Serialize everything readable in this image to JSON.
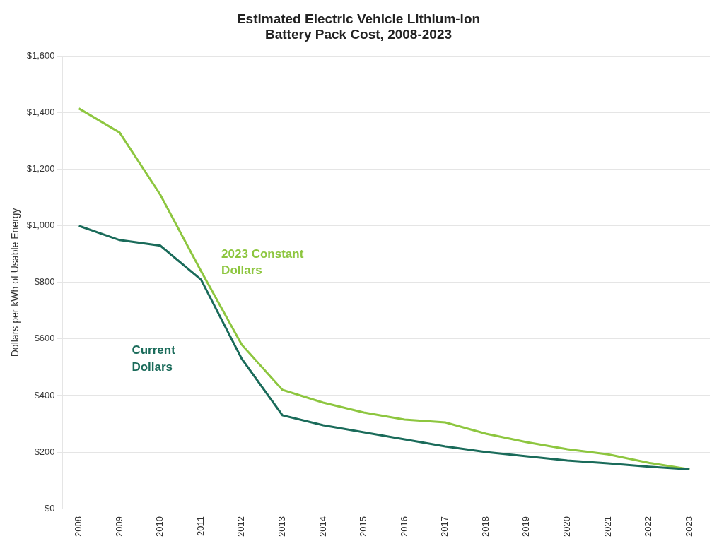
{
  "chart_data": {
    "type": "line",
    "title": "Estimated Electric Vehicle Lithium-ion\nBattery Pack Cost, 2008-2023",
    "y_label": "Dollars per kWh of Usable Energy",
    "x": [
      2008,
      2009,
      2010,
      2011,
      2012,
      2013,
      2014,
      2015,
      2016,
      2017,
      2018,
      2019,
      2020,
      2021,
      2022,
      2023
    ],
    "xlim": [
      2007.6,
      2023.5
    ],
    "xticks": [
      2008,
      2009,
      2010,
      2011,
      2012,
      2013,
      2014,
      2015,
      2016,
      2017,
      2018,
      2019,
      2020,
      2021,
      2022,
      2023
    ],
    "ylim": [
      0,
      1600
    ],
    "yticks": [
      {
        "value": 0,
        "label": "$0"
      },
      {
        "value": 200,
        "label": "$200"
      },
      {
        "value": 400,
        "label": "$400"
      },
      {
        "value": 600,
        "label": "$600"
      },
      {
        "value": 800,
        "label": "$800"
      },
      {
        "value": 1000,
        "label": "$1,000"
      },
      {
        "value": 1200,
        "label": "$1,200"
      },
      {
        "value": 1400,
        "label": "$1,400"
      },
      {
        "value": 1600,
        "label": "$1,600"
      }
    ],
    "grid": "y",
    "series": [
      {
        "color": "#8dc63f",
        "values": [
          1415,
          1330,
          1110,
          840,
          580,
          420,
          375,
          340,
          315,
          305,
          265,
          235,
          210,
          192,
          162,
          139
        ]
      },
      {
        "color": "#1a6b5a",
        "values": [
          1000,
          950,
          930,
          810,
          530,
          330,
          295,
          270,
          245,
          220,
          200,
          185,
          170,
          160,
          148,
          139
        ]
      }
    ],
    "annotations": [
      {
        "text": "2023 Constant\nDollars",
        "x": 2011.5,
        "y": 870,
        "color": "#8dc63f"
      },
      {
        "text": "Current\nDollars",
        "x": 2009.3,
        "y": 530,
        "color": "#1a6b5a"
      }
    ]
  }
}
